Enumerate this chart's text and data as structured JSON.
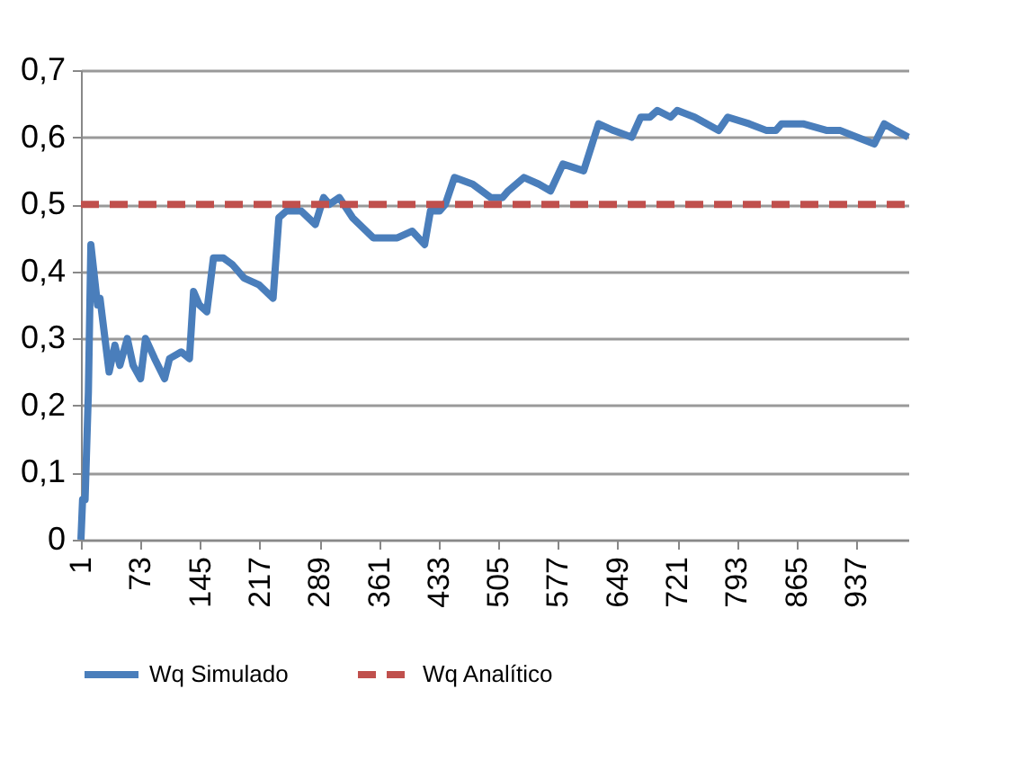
{
  "chart_data": {
    "type": "line",
    "xlim": [
      1,
      1000
    ],
    "xticks": [
      1,
      73,
      145,
      217,
      289,
      361,
      433,
      505,
      577,
      649,
      721,
      793,
      865,
      937
    ],
    "ylim": [
      0,
      0.7
    ],
    "yticks": [
      {
        "value": 0,
        "label": "0"
      },
      {
        "value": 0.1,
        "label": "0,1"
      },
      {
        "value": 0.2,
        "label": "0,2"
      },
      {
        "value": 0.3,
        "label": "0,3"
      },
      {
        "value": 0.4,
        "label": "0,4"
      },
      {
        "value": 0.5,
        "label": "0,5"
      },
      {
        "value": 0.6,
        "label": "0,6"
      },
      {
        "value": 0.7,
        "label": "0,7"
      }
    ],
    "grid": "y",
    "legend": "bottom",
    "series": [
      {
        "name": "Wq Simulado",
        "color": "#4a7ebb",
        "line_style": "solid",
        "x": [
          1,
          3,
          6,
          10,
          13,
          21,
          24,
          35,
          42,
          48,
          57,
          64,
          73,
          79,
          90,
          102,
          108,
          122,
          132,
          137,
          144,
          153,
          161,
          173,
          184,
          198,
          216,
          233,
          240,
          249,
          267,
          284,
          294,
          301,
          313,
          329,
          354,
          372,
          383,
          401,
          416,
          423,
          434,
          441,
          452,
          474,
          496,
          510,
          517,
          536,
          554,
          568,
          583,
          608,
          626,
          644,
          666,
          677,
          688,
          697,
          713,
          721,
          742,
          771,
          782,
          808,
          829,
          840,
          847,
          873,
          902,
          918,
          938,
          959,
          971,
          985,
          1000
        ],
        "values": [
          0,
          0.06,
          0.06,
          0.22,
          0.44,
          0.35,
          0.36,
          0.25,
          0.29,
          0.26,
          0.3,
          0.26,
          0.24,
          0.3,
          0.27,
          0.24,
          0.27,
          0.28,
          0.27,
          0.37,
          0.35,
          0.34,
          0.42,
          0.42,
          0.41,
          0.39,
          0.38,
          0.36,
          0.48,
          0.49,
          0.49,
          0.47,
          0.51,
          0.5,
          0.51,
          0.48,
          0.45,
          0.45,
          0.45,
          0.46,
          0.44,
          0.49,
          0.49,
          0.5,
          0.54,
          0.53,
          0.51,
          0.51,
          0.52,
          0.54,
          0.53,
          0.52,
          0.56,
          0.55,
          0.62,
          0.61,
          0.6,
          0.63,
          0.63,
          0.64,
          0.63,
          0.64,
          0.63,
          0.61,
          0.63,
          0.62,
          0.61,
          0.61,
          0.62,
          0.62,
          0.61,
          0.61,
          0.6,
          0.59,
          0.62,
          0.61,
          0.6
        ]
      },
      {
        "name": "Wq Analítico",
        "color": "#c0504d",
        "line_style": "dashed",
        "x": [
          1,
          1000
        ],
        "values": [
          0.5,
          0.5
        ]
      }
    ]
  }
}
